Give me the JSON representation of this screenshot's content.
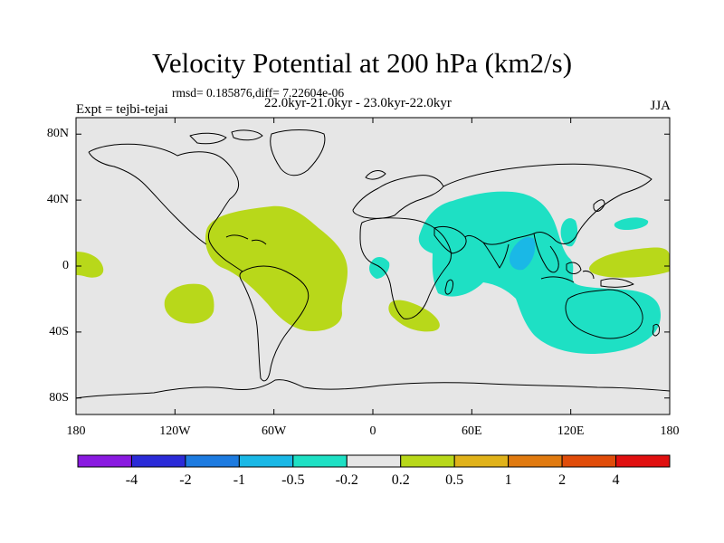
{
  "title": "Velocity Potential at 200 hPa (km2/s)",
  "stats_line": "rmsd= 0.185876,diff= 7.22604e-06",
  "experiment": "Expt = tejbi-tejai",
  "period": "22.0kyr-21.0kyr - 23.0kyr-22.0kyr",
  "season": "JJA",
  "axes": {
    "lat_ticks": [
      {
        "value": 80,
        "label": "80N"
      },
      {
        "value": 40,
        "label": "40N"
      },
      {
        "value": 0,
        "label": "0"
      },
      {
        "value": -40,
        "label": "40S"
      },
      {
        "value": -80,
        "label": "80S"
      }
    ],
    "lon_ticks": [
      {
        "value": -180,
        "label": "180"
      },
      {
        "value": -120,
        "label": "120W"
      },
      {
        "value": -60,
        "label": "60W"
      },
      {
        "value": 0,
        "label": "0"
      },
      {
        "value": 60,
        "label": "60E"
      },
      {
        "value": 120,
        "label": "120E"
      },
      {
        "value": 180,
        "label": "180"
      }
    ],
    "lon_range": [
      -180,
      180
    ],
    "lat_range": [
      -90,
      90
    ]
  },
  "colorbar": {
    "colors": [
      "#8a1ae0",
      "#2b2bd8",
      "#1d7be0",
      "#1ab8e6",
      "#1ee0c4",
      "#e6e6e6",
      "#b8d81a",
      "#e0b21a",
      "#e07a10",
      "#e04c0a",
      "#e01010"
    ],
    "labels": [
      "-4",
      "-2",
      "-1",
      "-0.5",
      "-0.2",
      "0.2",
      "0.5",
      "1",
      "2",
      "4"
    ]
  },
  "colors": {
    "background_field": "#e6e6e6",
    "positive_level1": "#b8d81a",
    "negative_level1": "#1ee0c4",
    "negative_level2": "#1ab8e6"
  }
}
